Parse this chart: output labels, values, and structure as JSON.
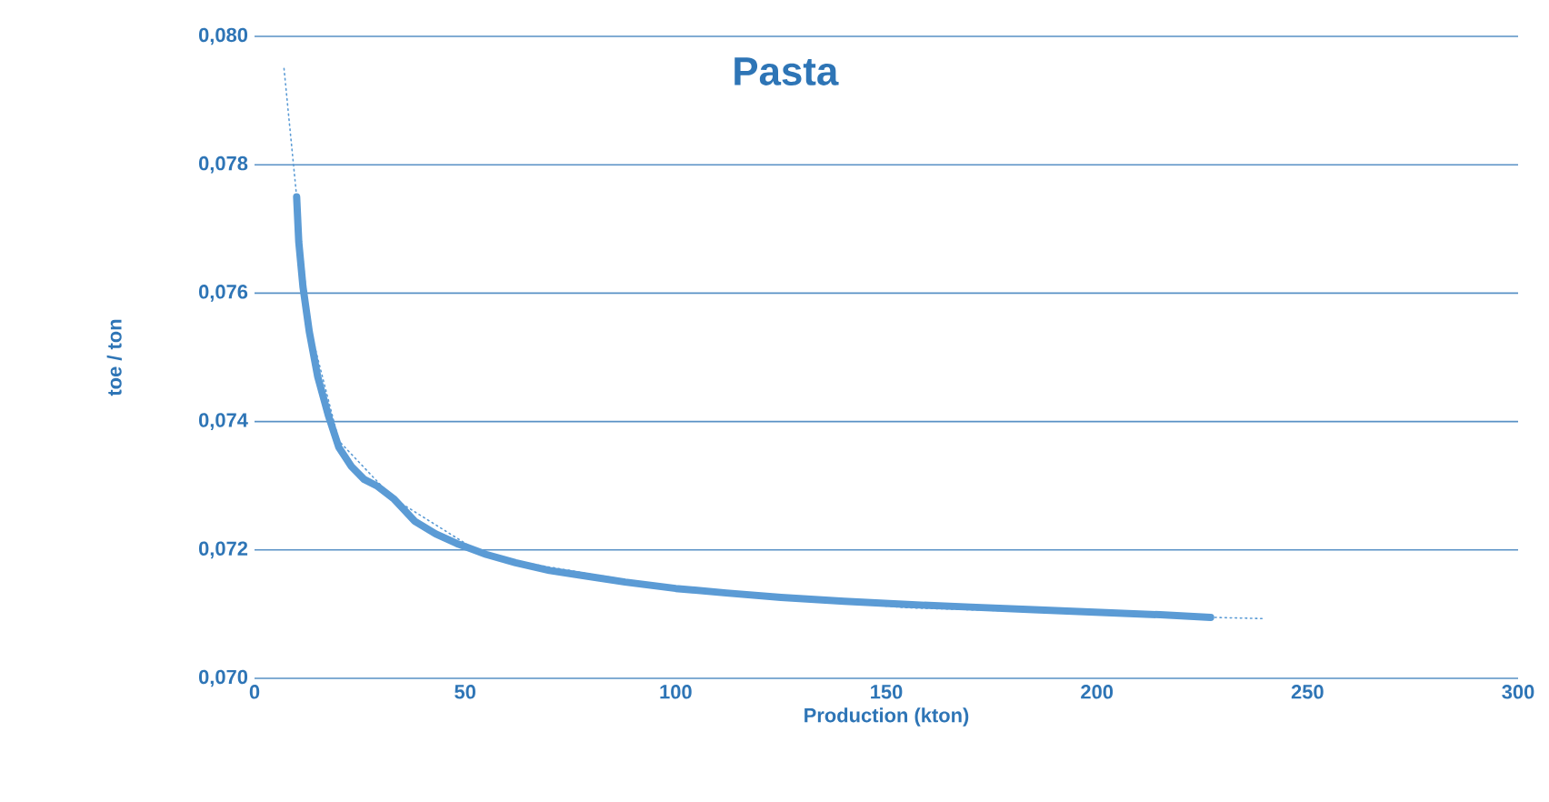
{
  "chart_data": {
    "type": "line",
    "title": "Pasta",
    "xlabel": "Production (kton)",
    "ylabel": "toe / ton",
    "xlim": [
      0,
      300
    ],
    "xticks": [
      0,
      50,
      100,
      150,
      200,
      250,
      300
    ],
    "ylim": [
      0.07,
      0.08
    ],
    "yticks": [
      {
        "value": 0.07,
        "label": "0,070"
      },
      {
        "value": 0.072,
        "label": "0,072"
      },
      {
        "value": 0.074,
        "label": "0,074"
      },
      {
        "value": 0.076,
        "label": "0,076"
      },
      {
        "value": 0.078,
        "label": "0,078"
      },
      {
        "value": 0.08,
        "label": "0,080"
      }
    ],
    "grid": "y",
    "marker": "none",
    "series": [
      {
        "color": "#5b9bd5",
        "line_style": "solid",
        "x": [
          10,
          10.5,
          11.5,
          13,
          15,
          17.5,
          20,
          23,
          26,
          29,
          33,
          38,
          43,
          48,
          55,
          62,
          70,
          78,
          88,
          100,
          112,
          125,
          140,
          155,
          170,
          185,
          200,
          215,
          227
        ],
        "values": [
          0.0775,
          0.0768,
          0.0761,
          0.0754,
          0.0747,
          0.0741,
          0.0736,
          0.0733,
          0.0731,
          0.073,
          0.0728,
          0.07245,
          0.07225,
          0.0721,
          0.07193,
          0.0718,
          0.07168,
          0.0716,
          0.0715,
          0.0714,
          0.07133,
          0.07126,
          0.0712,
          0.07115,
          0.07111,
          0.07107,
          0.07103,
          0.07099,
          0.07095
        ]
      },
      {
        "color": "#5b9bd5",
        "line_style": "dotted",
        "x": [
          7,
          10,
          13,
          20,
          33,
          55,
          100,
          155,
          227,
          240
        ],
        "values": [
          0.0795,
          0.0775,
          0.0755,
          0.0737,
          0.0728,
          0.0719,
          0.0714,
          0.0711,
          0.07095,
          0.07093
        ]
      }
    ]
  }
}
